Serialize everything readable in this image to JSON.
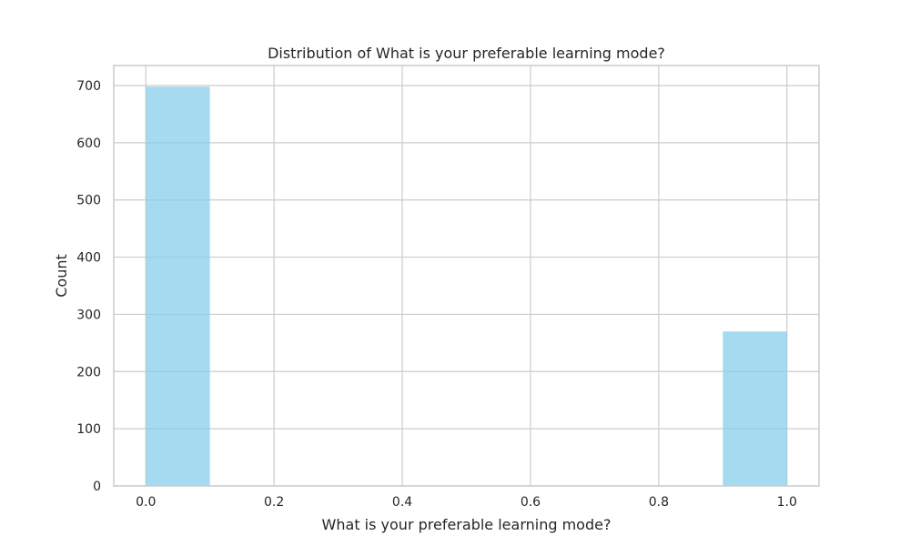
{
  "chart_data": {
    "type": "bar",
    "title": "Distribution of What is your preferable learning mode?",
    "xlabel": "What is your preferable learning mode?",
    "ylabel": "Count",
    "xlim": [
      -0.05,
      1.05
    ],
    "ylim": [
      0,
      735
    ],
    "x_ticks": [
      0.0,
      0.2,
      0.4,
      0.6,
      0.8,
      1.0
    ],
    "x_tick_labels": [
      "0.0",
      "0.2",
      "0.4",
      "0.6",
      "0.8",
      "1.0"
    ],
    "y_ticks": [
      0,
      100,
      200,
      300,
      400,
      500,
      600,
      700
    ],
    "y_tick_labels": [
      "0",
      "100",
      "200",
      "300",
      "400",
      "500",
      "600",
      "700"
    ],
    "bins": [
      {
        "x0": 0.0,
        "x1": 0.1,
        "count": 698
      },
      {
        "x0": 0.9,
        "x1": 1.0,
        "count": 270
      }
    ],
    "grid": true,
    "colors": {
      "bar": "#87ceeb"
    }
  }
}
